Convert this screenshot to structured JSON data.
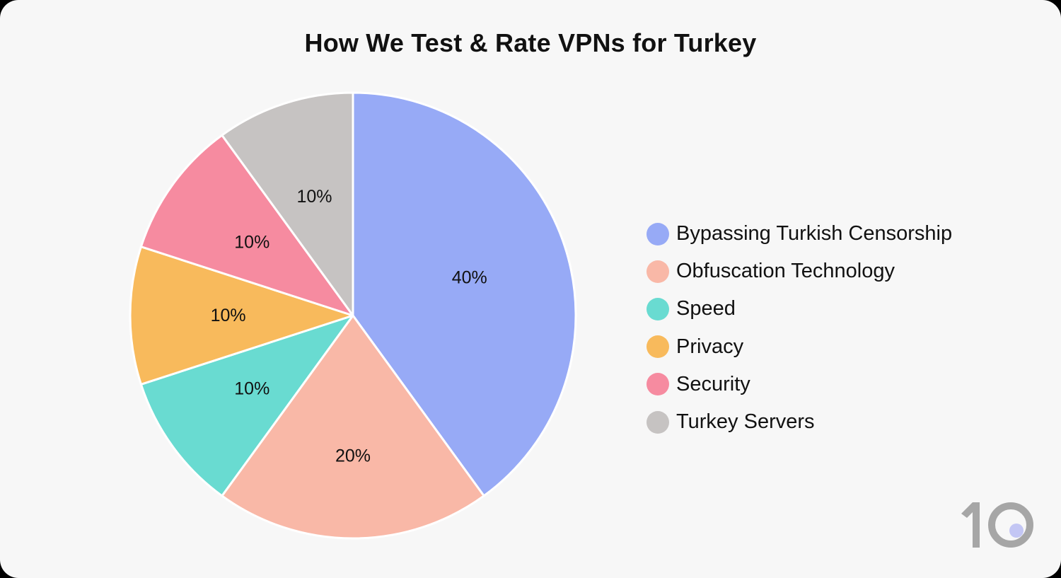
{
  "chart_data": {
    "type": "pie",
    "title": "How We Test & Rate VPNs for Turkey",
    "categories": [
      "Bypassing Turkish Censorship",
      "Obfuscation Technology",
      "Speed",
      "Privacy",
      "Security",
      "Turkey Servers"
    ],
    "values": [
      40,
      20,
      10,
      10,
      10,
      10
    ],
    "labels": [
      "40%",
      "20%",
      "10%",
      "10%",
      "10%",
      "10%"
    ],
    "colors": [
      "#97aaf6",
      "#f9b8a7",
      "#69dbd1",
      "#f8ba5c",
      "#f68ba0",
      "#c6c3c2"
    ],
    "start_angle": "12 o'clock",
    "direction": "clockwise",
    "legend_position": "right"
  },
  "header": {
    "title": "How We Test & Rate VPNs for Turkey"
  },
  "legend": {
    "items": [
      {
        "label": "Bypassing Turkish Censorship",
        "color": "#97aaf6"
      },
      {
        "label": "Obfuscation Technology",
        "color": "#f9b8a7"
      },
      {
        "label": "Speed",
        "color": "#69dbd1"
      },
      {
        "label": "Privacy",
        "color": "#f8ba5c"
      },
      {
        "label": "Security",
        "color": "#f68ba0"
      },
      {
        "label": "Turkey Servers",
        "color": "#c6c3c2"
      }
    ]
  },
  "logo": {
    "text": "10",
    "digit_color": "#a6a6a6",
    "dot_color": "#c3c6f4"
  }
}
